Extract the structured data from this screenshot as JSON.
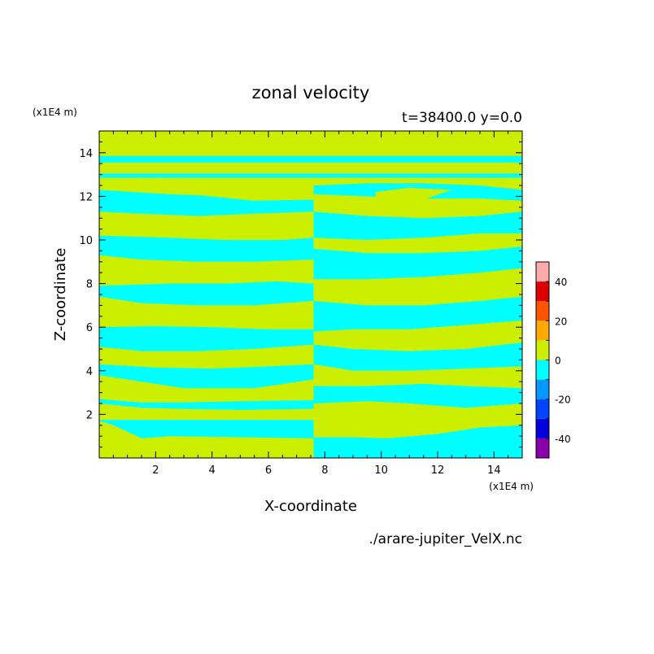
{
  "chart_data": {
    "type": "heatmap",
    "title": "zonal velocity",
    "subtitle": "t=38400.0 y=0.0",
    "xlabel": "X-coordinate",
    "ylabel": "Z-coordinate",
    "x_unit": "(x1E4 m)",
    "y_unit": "(x1E4 m)",
    "source_file": "./arare-jupiter_VelX.nc",
    "xlim": [
      0,
      15
    ],
    "ylim": [
      0,
      15
    ],
    "x_ticks": [
      2,
      4,
      6,
      8,
      10,
      12,
      14
    ],
    "y_ticks": [
      2,
      4,
      6,
      8,
      10,
      12,
      14
    ],
    "colorbar": {
      "levels": [
        -50,
        -40,
        -30,
        -20,
        -10,
        0,
        10,
        20,
        30,
        40,
        50
      ],
      "tick_labels": [
        "40",
        "20",
        "0",
        "-20",
        "-40"
      ],
      "tick_values": [
        40,
        20,
        0,
        -20,
        -40
      ],
      "colors": [
        "#8800aa",
        "#0000dd",
        "#0044ff",
        "#0099ff",
        "#00ffff",
        "#ccee00",
        "#ffaa00",
        "#ff5500",
        "#dd0000",
        "#ffaaaa"
      ]
    },
    "base_color": "#ccee00",
    "negative_color": "#00ffff",
    "negative_regions": [
      [
        [
          0,
          12.85
        ],
        [
          7.6,
          12.85
        ],
        [
          7.6,
          13.05
        ],
        [
          0,
          13.05
        ]
      ],
      [
        [
          7.6,
          12.85
        ],
        [
          15,
          12.85
        ],
        [
          15,
          13.05
        ],
        [
          7.6,
          13.05
        ]
      ],
      [
        [
          0,
          13.55
        ],
        [
          15,
          13.55
        ],
        [
          15,
          13.85
        ],
        [
          0,
          13.85
        ]
      ],
      [
        [
          0,
          1.75
        ],
        [
          7.6,
          1.75
        ],
        [
          7.6,
          0.9
        ],
        [
          5,
          0.95
        ],
        [
          2.5,
          1.0
        ],
        [
          1.5,
          0.9
        ],
        [
          0.5,
          1.5
        ],
        [
          0,
          1.7
        ]
      ],
      [
        [
          7.6,
          0
        ],
        [
          15,
          0
        ],
        [
          15,
          1.5
        ],
        [
          13.5,
          1.4
        ],
        [
          12,
          1.1
        ],
        [
          10.2,
          0.9
        ],
        [
          9,
          0.95
        ],
        [
          7.6,
          0.95
        ]
      ],
      [
        [
          0,
          2.7
        ],
        [
          1.5,
          2.55
        ],
        [
          3,
          2.55
        ],
        [
          5,
          2.6
        ],
        [
          7.6,
          2.65
        ],
        [
          7.6,
          2.25
        ],
        [
          5,
          2.2
        ],
        [
          3,
          2.25
        ],
        [
          1.5,
          2.3
        ],
        [
          0,
          2.5
        ]
      ],
      [
        [
          7.6,
          3.3
        ],
        [
          9.5,
          3.3
        ],
        [
          11.5,
          3.4
        ],
        [
          13,
          3.3
        ],
        [
          15,
          3.2
        ],
        [
          15,
          2.5
        ],
        [
          13,
          2.3
        ],
        [
          11,
          2.5
        ],
        [
          9.5,
          2.6
        ],
        [
          7.6,
          2.5
        ]
      ],
      [
        [
          0,
          4.3
        ],
        [
          2,
          4.15
        ],
        [
          4,
          4.1
        ],
        [
          6,
          4.2
        ],
        [
          7.6,
          4.3
        ],
        [
          7.6,
          3.6
        ],
        [
          5.5,
          3.2
        ],
        [
          3,
          3.2
        ],
        [
          1.5,
          3.5
        ],
        [
          0,
          3.8
        ]
      ],
      [
        [
          7.6,
          5.2
        ],
        [
          9,
          5.0
        ],
        [
          11,
          4.9
        ],
        [
          13,
          5.0
        ],
        [
          15,
          5.3
        ],
        [
          15,
          4.2
        ],
        [
          13,
          4.1
        ],
        [
          11,
          4.0
        ],
        [
          9,
          4.0
        ],
        [
          7.6,
          4.3
        ]
      ],
      [
        [
          0,
          6.0
        ],
        [
          2,
          6.05
        ],
        [
          4,
          6.0
        ],
        [
          6,
          5.9
        ],
        [
          7.6,
          5.9
        ],
        [
          7.6,
          5.2
        ],
        [
          5.5,
          5.0
        ],
        [
          3.5,
          4.9
        ],
        [
          1.5,
          4.9
        ],
        [
          0,
          5.1
        ]
      ],
      [
        [
          7.6,
          7.2
        ],
        [
          9.5,
          7.0
        ],
        [
          11.5,
          7.0
        ],
        [
          13.5,
          7.2
        ],
        [
          15,
          7.4
        ],
        [
          15,
          6.3
        ],
        [
          13,
          6.1
        ],
        [
          11,
          5.9
        ],
        [
          9,
          5.9
        ],
        [
          7.6,
          5.8
        ]
      ],
      [
        [
          0,
          7.9
        ],
        [
          2.5,
          8.0
        ],
        [
          4.5,
          8.0
        ],
        [
          6.3,
          8.1
        ],
        [
          7.6,
          8.0
        ],
        [
          7.6,
          7.2
        ],
        [
          5.5,
          7.0
        ],
        [
          3.5,
          7.0
        ],
        [
          1.5,
          7.1
        ],
        [
          0,
          7.4
        ]
      ],
      [
        [
          7.6,
          9.6
        ],
        [
          9.5,
          9.4
        ],
        [
          11.5,
          9.4
        ],
        [
          13.5,
          9.5
        ],
        [
          15,
          9.7
        ],
        [
          15,
          8.7
        ],
        [
          13.5,
          8.5
        ],
        [
          11.5,
          8.3
        ],
        [
          9.5,
          8.2
        ],
        [
          7.6,
          8.2
        ]
      ],
      [
        [
          0,
          10.2
        ],
        [
          2.5,
          10.1
        ],
        [
          4.5,
          10.0
        ],
        [
          6.5,
          10.0
        ],
        [
          7.6,
          10.1
        ],
        [
          7.6,
          9.1
        ],
        [
          5.5,
          9.0
        ],
        [
          3.5,
          9.0
        ],
        [
          1.5,
          9.1
        ],
        [
          0,
          9.3
        ]
      ],
      [
        [
          7.6,
          11.3
        ],
        [
          9.5,
          11.1
        ],
        [
          11.5,
          11.0
        ],
        [
          13.5,
          11.1
        ],
        [
          15,
          11.3
        ],
        [
          15,
          10.3
        ],
        [
          13.5,
          10.3
        ],
        [
          11.5,
          10.1
        ],
        [
          9.5,
          10.0
        ],
        [
          7.6,
          10.1
        ]
      ],
      [
        [
          0,
          12.3
        ],
        [
          2.5,
          12.1
        ],
        [
          4.5,
          12.0
        ],
        [
          6.5,
          12.0
        ],
        [
          7.6,
          12.1
        ],
        [
          7.6,
          11.3
        ],
        [
          5.5,
          11.2
        ],
        [
          3.5,
          11.1
        ],
        [
          1.5,
          11.2
        ],
        [
          0,
          11.3
        ]
      ],
      [
        [
          7.6,
          12.5
        ],
        [
          9.5,
          12.6
        ],
        [
          11.5,
          12.6
        ],
        [
          13.5,
          12.5
        ],
        [
          15,
          12.3
        ],
        [
          15,
          11.8
        ],
        [
          13.5,
          11.9
        ],
        [
          11.5,
          11.9
        ],
        [
          9.5,
          12.0
        ],
        [
          7.6,
          12.1
        ]
      ]
    ],
    "positive_islands": [
      [
        [
          0,
          8.3
        ],
        [
          0.8,
          8.6
        ],
        [
          1.3,
          8.4
        ],
        [
          0.8,
          8.1
        ],
        [
          0,
          8.15
        ]
      ],
      [
        [
          14.2,
          8.2
        ],
        [
          15,
          8.4
        ],
        [
          15,
          8.0
        ],
        [
          14.6,
          8.0
        ]
      ],
      [
        [
          3.6,
          12.05
        ],
        [
          5.5,
          11.8
        ],
        [
          7.6,
          11.85
        ],
        [
          7.6,
          12.2
        ],
        [
          5.5,
          12.25
        ]
      ],
      [
        [
          5.5,
          10.65
        ],
        [
          6.5,
          10.4
        ],
        [
          7.6,
          10.5
        ],
        [
          7.6,
          10.9
        ],
        [
          6.5,
          10.9
        ]
      ],
      [
        [
          4.5,
          10.8
        ],
        [
          6.0,
          10.95
        ],
        [
          7.6,
          11.0
        ],
        [
          7.6,
          11.25
        ],
        [
          5.5,
          11.2
        ]
      ],
      [
        [
          6.5,
          8.2
        ],
        [
          7.6,
          8.1
        ],
        [
          7.6,
          8.5
        ],
        [
          6.8,
          8.4
        ]
      ],
      [
        [
          9.8,
          11.9
        ],
        [
          11.5,
          11.85
        ],
        [
          12.5,
          12.3
        ],
        [
          11.0,
          12.4
        ],
        [
          9.8,
          12.2
        ]
      ]
    ]
  }
}
